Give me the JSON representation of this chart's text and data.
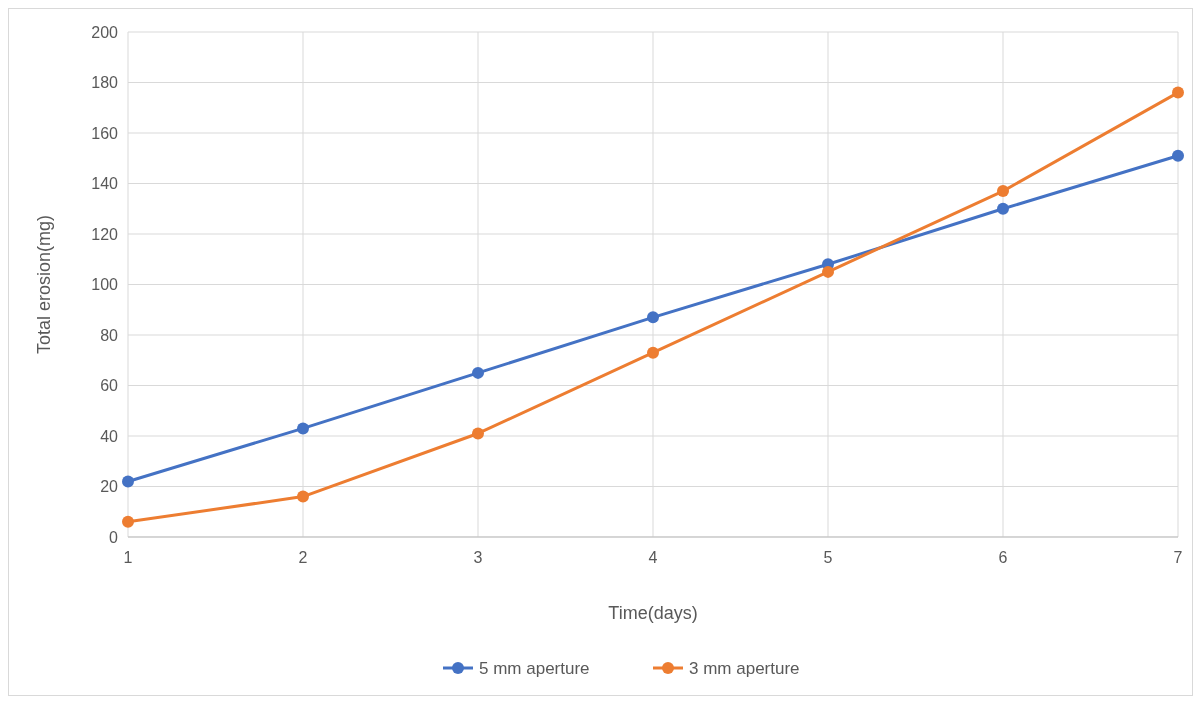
{
  "chart_data": {
    "type": "line",
    "xlabel": "Time(days)",
    "ylabel": "Total erosion(mg)",
    "x": [
      1,
      2,
      3,
      4,
      5,
      6,
      7
    ],
    "series": [
      {
        "name": "5 mm aperture",
        "color": "#4472c4",
        "values": [
          22,
          43,
          65,
          87,
          108,
          130,
          151
        ]
      },
      {
        "name": "3 mm aperture",
        "color": "#ed7d31",
        "values": [
          6,
          16,
          41,
          73,
          105,
          137,
          176
        ]
      }
    ],
    "xlim": [
      1,
      7
    ],
    "xticks": [
      1,
      2,
      3,
      4,
      5,
      6,
      7
    ],
    "ylim": [
      0,
      200
    ],
    "yticks": [
      0,
      20,
      40,
      60,
      80,
      100,
      120,
      140,
      160,
      180,
      200
    ],
    "grid": true,
    "legend": "bottom",
    "marker": "circle",
    "line_style": "solid"
  }
}
